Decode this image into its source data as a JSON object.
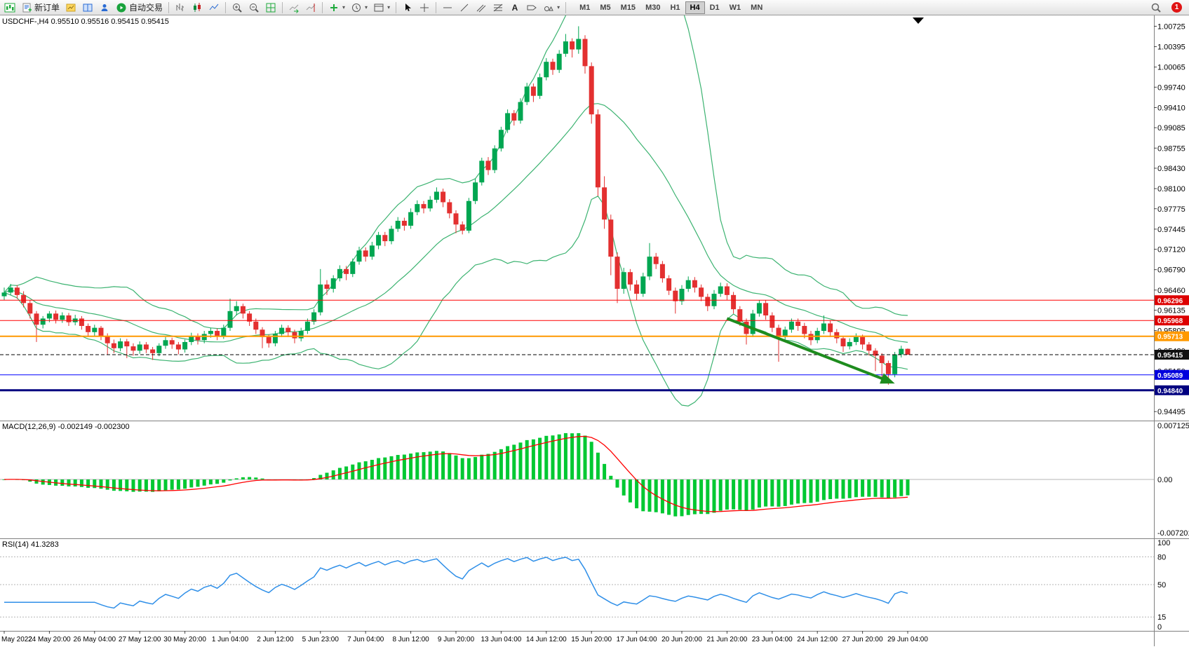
{
  "window": {
    "toolbar": {
      "new_order_label": "新订单",
      "auto_trading_label": "自动交易",
      "timeframes": [
        "M1",
        "M5",
        "M15",
        "M30",
        "H1",
        "H4",
        "D1",
        "W1",
        "MN"
      ],
      "active_timeframe": "H4",
      "notification_badge": "1"
    }
  },
  "chart": {
    "title": "USDCHF-,H4 0.95510 0.95516 0.95415 0.95415",
    "macd_label": "MACD(12,26,9) -0.002149 -0.002300",
    "rsi_label": "RSI(14) 41.3283"
  },
  "chart_data": {
    "type": "candlestick",
    "symbol": "USDCHF-",
    "timeframe": "H4",
    "ohlc_display": {
      "open": "0.95510",
      "high": "0.95516",
      "low": "0.95415",
      "close": "0.95415"
    },
    "price_scale_labels": [
      "1.00725",
      "1.00395",
      "1.00065",
      "0.99740",
      "0.99410",
      "0.99085",
      "0.98755",
      "0.98430",
      "0.98100",
      "0.97775",
      "0.97445",
      "0.97120",
      "0.96790",
      "0.96460",
      "0.96135",
      "0.95805",
      "0.95480",
      "0.95150",
      "0.94825",
      "0.94495"
    ],
    "time_labels": [
      "May 2022",
      "24 May 20:00",
      "26 May 04:00",
      "27 May 12:00",
      "30 May 20:00",
      "1 Jun 04:00",
      "2 Jun 12:00",
      "5 Jun 23:00",
      "7 Jun 04:00",
      "8 Jun 12:00",
      "9 Jun 20:00",
      "13 Jun 04:00",
      "14 Jun 12:00",
      "15 Jun 20:00",
      "17 Jun 04:00",
      "20 Jun 20:00",
      "21 Jun 20:00",
      "23 Jun 04:00",
      "24 Jun 12:00",
      "27 Jun 20:00",
      "29 Jun 04:00"
    ],
    "candles": [
      [
        0.9636,
        0.965,
        0.963,
        0.9642
      ],
      [
        0.9642,
        0.9656,
        0.9638,
        0.965
      ],
      [
        0.965,
        0.9654,
        0.9632,
        0.9638
      ],
      [
        0.9638,
        0.9644,
        0.9618,
        0.9625
      ],
      [
        0.9625,
        0.963,
        0.96,
        0.9608
      ],
      [
        0.9608,
        0.9612,
        0.9562,
        0.959
      ],
      [
        0.959,
        0.9604,
        0.9584,
        0.96
      ],
      [
        0.96,
        0.9612,
        0.9594,
        0.9608
      ],
      [
        0.9608,
        0.9613,
        0.9592,
        0.9598
      ],
      [
        0.9598,
        0.961,
        0.9593,
        0.9605
      ],
      [
        0.9605,
        0.9609,
        0.9588,
        0.9594
      ],
      [
        0.9594,
        0.9606,
        0.9589,
        0.96
      ],
      [
        0.96,
        0.9604,
        0.9582,
        0.9588
      ],
      [
        0.9588,
        0.9592,
        0.957,
        0.9578
      ],
      [
        0.9578,
        0.959,
        0.9572,
        0.9585
      ],
      [
        0.9585,
        0.9588,
        0.9565,
        0.9572
      ],
      [
        0.9572,
        0.9576,
        0.9542,
        0.956
      ],
      [
        0.956,
        0.9566,
        0.9544,
        0.9552
      ],
      [
        0.9552,
        0.9568,
        0.9547,
        0.9563
      ],
      [
        0.9563,
        0.9567,
        0.9536,
        0.9555
      ],
      [
        0.9555,
        0.956,
        0.954,
        0.9548
      ],
      [
        0.9548,
        0.9563,
        0.9543,
        0.9558
      ],
      [
        0.9558,
        0.9562,
        0.9544,
        0.955
      ],
      [
        0.955,
        0.9554,
        0.9533,
        0.9544
      ],
      [
        0.9544,
        0.956,
        0.9539,
        0.9556
      ],
      [
        0.9556,
        0.957,
        0.9551,
        0.9565
      ],
      [
        0.9565,
        0.9569,
        0.9551,
        0.9558
      ],
      [
        0.9558,
        0.9562,
        0.9542,
        0.955
      ],
      [
        0.955,
        0.9566,
        0.9545,
        0.9562
      ],
      [
        0.9562,
        0.9577,
        0.9557,
        0.9572
      ],
      [
        0.9572,
        0.9576,
        0.9558,
        0.9565
      ],
      [
        0.9565,
        0.958,
        0.956,
        0.9575
      ],
      [
        0.9575,
        0.9585,
        0.9569,
        0.958
      ],
      [
        0.958,
        0.9584,
        0.9565,
        0.9572
      ],
      [
        0.9572,
        0.959,
        0.9567,
        0.9585
      ],
      [
        0.9585,
        0.9632,
        0.958,
        0.9612
      ],
      [
        0.9612,
        0.9628,
        0.9605,
        0.962
      ],
      [
        0.962,
        0.9624,
        0.96,
        0.9608
      ],
      [
        0.9608,
        0.9612,
        0.9588,
        0.9595
      ],
      [
        0.9595,
        0.96,
        0.9575,
        0.9582
      ],
      [
        0.9582,
        0.9586,
        0.9552,
        0.957
      ],
      [
        0.957,
        0.9574,
        0.9553,
        0.956
      ],
      [
        0.956,
        0.958,
        0.9555,
        0.9575
      ],
      [
        0.9575,
        0.959,
        0.957,
        0.9585
      ],
      [
        0.9585,
        0.9589,
        0.957,
        0.9578
      ],
      [
        0.9578,
        0.9582,
        0.956,
        0.9568
      ],
      [
        0.9568,
        0.9585,
        0.9563,
        0.958
      ],
      [
        0.958,
        0.96,
        0.9575,
        0.9595
      ],
      [
        0.9595,
        0.9615,
        0.959,
        0.961
      ],
      [
        0.961,
        0.968,
        0.9605,
        0.9655
      ],
      [
        0.9655,
        0.9662,
        0.9638,
        0.9648
      ],
      [
        0.9648,
        0.967,
        0.9642,
        0.9665
      ],
      [
        0.9665,
        0.9686,
        0.966,
        0.968
      ],
      [
        0.968,
        0.9685,
        0.9662,
        0.9672
      ],
      [
        0.9672,
        0.9697,
        0.9667,
        0.9692
      ],
      [
        0.9692,
        0.9716,
        0.9687,
        0.971
      ],
      [
        0.971,
        0.9715,
        0.9692,
        0.97
      ],
      [
        0.97,
        0.9724,
        0.9695,
        0.9718
      ],
      [
        0.9718,
        0.974,
        0.9712,
        0.9735
      ],
      [
        0.9735,
        0.974,
        0.9717,
        0.9725
      ],
      [
        0.9725,
        0.975,
        0.972,
        0.9745
      ],
      [
        0.9745,
        0.9764,
        0.974,
        0.9758
      ],
      [
        0.9758,
        0.9763,
        0.9742,
        0.975
      ],
      [
        0.975,
        0.9778,
        0.9745,
        0.9772
      ],
      [
        0.9772,
        0.9791,
        0.9767,
        0.9785
      ],
      [
        0.9785,
        0.979,
        0.977,
        0.9778
      ],
      [
        0.9778,
        0.9798,
        0.9773,
        0.9792
      ],
      [
        0.9792,
        0.9812,
        0.9787,
        0.9805
      ],
      [
        0.9805,
        0.981,
        0.978,
        0.9788
      ],
      [
        0.9788,
        0.9793,
        0.9762,
        0.977
      ],
      [
        0.977,
        0.9775,
        0.9738,
        0.9752
      ],
      [
        0.9752,
        0.9757,
        0.9736,
        0.9742
      ],
      [
        0.9742,
        0.9795,
        0.9738,
        0.979
      ],
      [
        0.979,
        0.9826,
        0.9785,
        0.982
      ],
      [
        0.982,
        0.986,
        0.9815,
        0.9855
      ],
      [
        0.9855,
        0.9861,
        0.9832,
        0.984
      ],
      [
        0.984,
        0.988,
        0.9835,
        0.9875
      ],
      [
        0.9875,
        0.991,
        0.987,
        0.9905
      ],
      [
        0.9905,
        0.9938,
        0.99,
        0.9932
      ],
      [
        0.9932,
        0.9937,
        0.9912,
        0.992
      ],
      [
        0.992,
        0.9956,
        0.9915,
        0.995
      ],
      [
        0.995,
        0.9981,
        0.9945,
        0.9975
      ],
      [
        0.9975,
        0.998,
        0.995,
        0.996
      ],
      [
        0.996,
        0.9996,
        0.9955,
        0.999
      ],
      [
        0.999,
        1.0021,
        0.9985,
        1.0015
      ],
      [
        1.0015,
        1.002,
        0.9994,
        1.0002
      ],
      [
        1.0002,
        1.0034,
        0.9997,
        1.0028
      ],
      [
        1.0028,
        1.006,
        1.0023,
        1.0048
      ],
      [
        1.0048,
        1.0053,
        1.0022,
        1.0035
      ],
      [
        1.0035,
        1.00725,
        1.0028,
        1.0052
      ],
      [
        1.0052,
        1.0058,
        0.9996,
        1.0008
      ],
      [
        1.0008,
        1.0014,
        0.9915,
        0.993
      ],
      [
        0.993,
        0.9938,
        0.9798,
        0.9812
      ],
      [
        0.9812,
        0.983,
        0.9745,
        0.976
      ],
      [
        0.976,
        0.9768,
        0.967,
        0.97
      ],
      [
        0.97,
        0.9707,
        0.9625,
        0.9648
      ],
      [
        0.9648,
        0.9682,
        0.964,
        0.9675
      ],
      [
        0.9675,
        0.968,
        0.9645,
        0.9655
      ],
      [
        0.9655,
        0.9662,
        0.963,
        0.964
      ],
      [
        0.964,
        0.9674,
        0.9635,
        0.9668
      ],
      [
        0.9668,
        0.9722,
        0.9662,
        0.97
      ],
      [
        0.97,
        0.9706,
        0.968,
        0.9688
      ],
      [
        0.9688,
        0.9693,
        0.9658,
        0.9665
      ],
      [
        0.9665,
        0.967,
        0.9638,
        0.9645
      ],
      [
        0.9645,
        0.965,
        0.9608,
        0.9628
      ],
      [
        0.9628,
        0.9654,
        0.9622,
        0.9648
      ],
      [
        0.9648,
        0.9668,
        0.9643,
        0.9662
      ],
      [
        0.9662,
        0.9667,
        0.9642,
        0.965
      ],
      [
        0.965,
        0.9655,
        0.9628,
        0.9635
      ],
      [
        0.9635,
        0.964,
        0.9612,
        0.962
      ],
      [
        0.962,
        0.9646,
        0.9615,
        0.964
      ],
      [
        0.964,
        0.9658,
        0.9635,
        0.9652
      ],
      [
        0.9652,
        0.9657,
        0.963,
        0.9638
      ],
      [
        0.9638,
        0.9643,
        0.9608,
        0.9615
      ],
      [
        0.9615,
        0.962,
        0.9588,
        0.9595
      ],
      [
        0.9595,
        0.96,
        0.9558,
        0.9575
      ],
      [
        0.9575,
        0.9614,
        0.957,
        0.9608
      ],
      [
        0.9608,
        0.963,
        0.9603,
        0.9625
      ],
      [
        0.9625,
        0.963,
        0.9598,
        0.9605
      ],
      [
        0.9605,
        0.961,
        0.9578,
        0.9585
      ],
      [
        0.9585,
        0.959,
        0.953,
        0.957
      ],
      [
        0.957,
        0.9587,
        0.9565,
        0.9582
      ],
      [
        0.9582,
        0.96,
        0.9577,
        0.9595
      ],
      [
        0.9595,
        0.96,
        0.958,
        0.9588
      ],
      [
        0.9588,
        0.9593,
        0.9568,
        0.9575
      ],
      [
        0.9575,
        0.958,
        0.9557,
        0.9565
      ],
      [
        0.9565,
        0.9585,
        0.956,
        0.958
      ],
      [
        0.958,
        0.9605,
        0.9575,
        0.9592
      ],
      [
        0.9592,
        0.9597,
        0.957,
        0.9578
      ],
      [
        0.9578,
        0.9583,
        0.956,
        0.9568
      ],
      [
        0.9568,
        0.9572,
        0.9546,
        0.9555
      ],
      [
        0.9555,
        0.9568,
        0.955,
        0.9562
      ],
      [
        0.9562,
        0.9576,
        0.9557,
        0.957
      ],
      [
        0.957,
        0.9574,
        0.955,
        0.9558
      ],
      [
        0.9558,
        0.9562,
        0.954,
        0.9548
      ],
      [
        0.9548,
        0.9552,
        0.9515,
        0.954
      ],
      [
        0.954,
        0.9544,
        0.9495,
        0.9528
      ],
      [
        0.9528,
        0.9532,
        0.9493,
        0.951
      ],
      [
        0.951,
        0.9546,
        0.9505,
        0.9542
      ],
      [
        0.9542,
        0.9556,
        0.9537,
        0.9551
      ],
      [
        0.9551,
        0.95516,
        0.95415,
        0.95415
      ]
    ],
    "bollinger": {
      "period": 20,
      "deviation": 2,
      "color": "#3CB371"
    },
    "horizontal_levels": [
      {
        "price": 0.96296,
        "color": "#FF0000",
        "width": 1,
        "style": "solid",
        "badge": "0.96296",
        "badge_bg": "#DD0000"
      },
      {
        "price": 0.95968,
        "color": "#FF0000",
        "width": 1,
        "style": "solid",
        "badge": "0.95968",
        "badge_bg": "#DD0000"
      },
      {
        "price": 0.95713,
        "color": "#FF9900",
        "width": 2,
        "style": "solid",
        "badge": "0.95713",
        "badge_bg": "#FF9900"
      },
      {
        "price": 0.95415,
        "color": "#000000",
        "width": 1,
        "style": "dashed",
        "badge": "0.95415",
        "badge_bg": "#111111"
      },
      {
        "price": 0.95089,
        "color": "#0000FF",
        "width": 1,
        "style": "solid",
        "badge": "0.95089",
        "badge_bg": "#0000DD"
      },
      {
        "price": 0.9484,
        "color": "#000080",
        "width": 3,
        "style": "solid",
        "badge": "0.94840",
        "badge_bg": "#000080"
      }
    ],
    "trend_arrow": {
      "from_bar": 112,
      "from_price": 0.96,
      "to_bar": 138,
      "to_price": 0.9495,
      "color": "#1E8C1E"
    },
    "macd": {
      "params": [
        12,
        26,
        9
      ],
      "value_main": "-0.002149",
      "value_signal": "-0.002300",
      "scale_labels": [
        "0.007125",
        "0.00",
        "-0.007201"
      ],
      "histogram_color": "#00C832",
      "signal_color": "#FF0000"
    },
    "rsi": {
      "period": 14,
      "value": "41.3283",
      "scale_labels": [
        "100",
        "80",
        "50",
        "15",
        "0"
      ],
      "levels": [
        80,
        50,
        15
      ],
      "line_color": "#2F8FE8"
    },
    "colors": {
      "bull": "#00A651",
      "bear": "#E33030",
      "background": "#FFFFFF"
    }
  }
}
